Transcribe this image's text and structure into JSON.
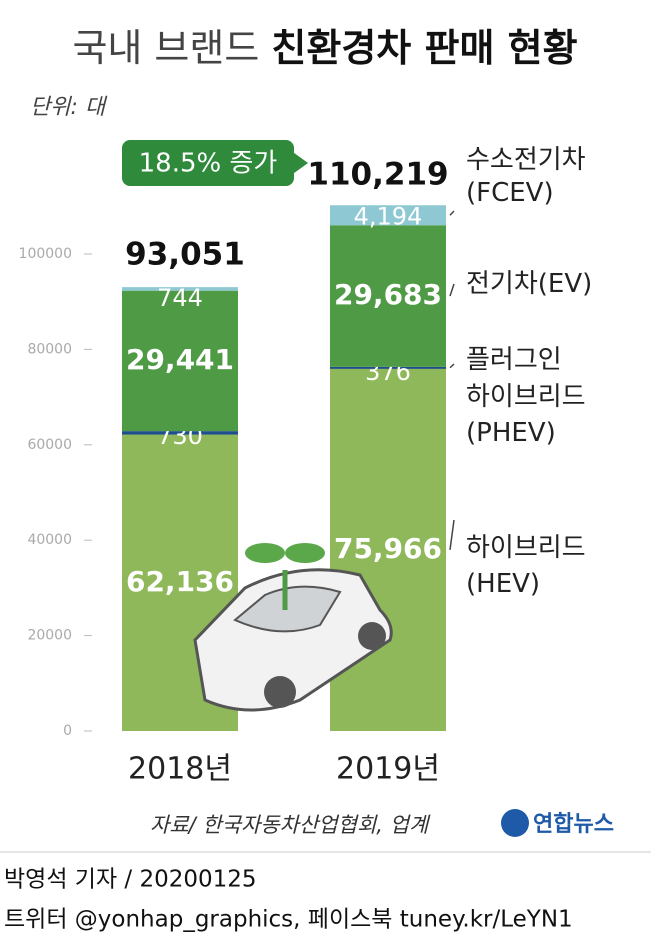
{
  "chart_data": {
    "type": "stacked_bar",
    "title": "국내 브랜드",
    "title_bold": "친환경차 판매 현황",
    "subtitle": "단위: 대",
    "categories": [
      "2018년",
      "2019년"
    ],
    "series": [
      {
        "name": "하이브리드\n(HEV)",
        "color": "#8fb85a",
        "values": [
          62136,
          75966
        ],
        "value_labels": [
          "62,136",
          "75,966"
        ]
      },
      {
        "name": "플러그인\n하이브리드\n(PHEV)",
        "color": "#1f4e8c",
        "values": [
          730,
          376
        ],
        "value_labels": [
          "730",
          "376"
        ]
      },
      {
        "name": "전기차(EV)",
        "color": "#4e9a45",
        "values": [
          29441,
          29683
        ],
        "value_labels": [
          "29,441",
          "29,683"
        ]
      },
      {
        "name": "수소전기차\n(FCEV)",
        "color": "#8ec8d2",
        "values": [
          744,
          4194
        ],
        "value_labels": [
          "744",
          "4,194"
        ]
      }
    ],
    "totals": [
      93051,
      110219
    ],
    "total_labels": [
      "93,051",
      "110,219"
    ],
    "annotation": "18.5% 증가",
    "ylim": [
      0,
      120000
    ],
    "yticks": [
      0,
      20000,
      40000,
      60000,
      80000,
      100000
    ],
    "source": "자료/ 한국자동차산업협회, 업계",
    "logo": "연합뉴스",
    "byline": "박영석 기자 / 20200125",
    "footer": "트위터 @yonhap_graphics, 페이스북 tuney.kr/LeYN1"
  }
}
